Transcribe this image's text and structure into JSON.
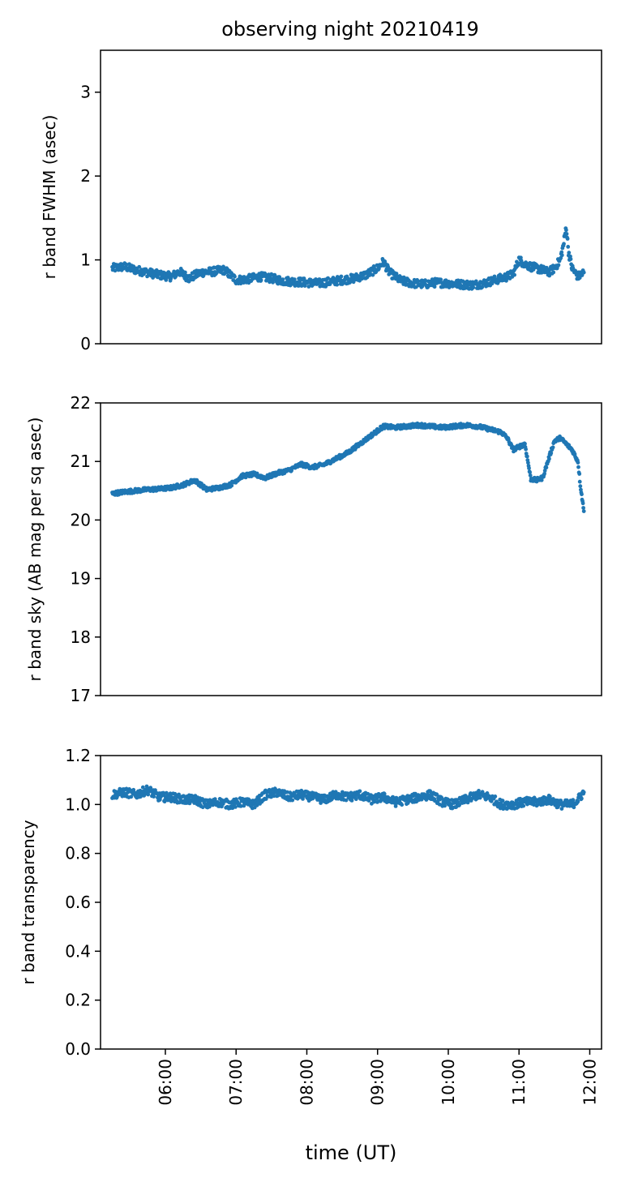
{
  "figure": {
    "title": "observing night 20210419",
    "xlabel": "time (UT)"
  },
  "chart_data": [
    {
      "type": "scatter",
      "panel": "fwhm",
      "ylabel": "r band FWHM (asec)",
      "ylim": [
        0,
        3.5
      ],
      "yticks": [
        "0",
        "1",
        "2",
        "3"
      ],
      "ytick_values": [
        0,
        1,
        2,
        3
      ],
      "xlim": [
        "05:05",
        "12:10"
      ],
      "show_xticks": false,
      "color": "#1f77b4",
      "series": [
        {
          "x": [
            "05:15",
            "05:25",
            "05:35",
            "05:45",
            "05:55",
            "06:05",
            "06:12",
            "06:20",
            "06:30",
            "06:40",
            "06:50",
            "07:00",
            "07:10",
            "07:20",
            "07:30",
            "07:40",
            "07:50",
            "08:00",
            "08:10",
            "08:20",
            "08:30",
            "08:40",
            "08:50",
            "09:00",
            "09:05",
            "09:10",
            "09:20",
            "09:30",
            "09:40",
            "09:50",
            "10:00",
            "10:10",
            "10:20",
            "10:30",
            "10:40",
            "10:50",
            "10:55",
            "11:00",
            "11:05",
            "11:10",
            "11:15",
            "11:20",
            "11:25",
            "11:30",
            "11:35",
            "11:38",
            "11:40",
            "11:42",
            "11:45",
            "11:50",
            "11:55"
          ],
          "y": [
            0.9,
            0.92,
            0.88,
            0.85,
            0.82,
            0.8,
            0.86,
            0.78,
            0.85,
            0.86,
            0.88,
            0.76,
            0.77,
            0.8,
            0.78,
            0.75,
            0.74,
            0.73,
            0.72,
            0.74,
            0.76,
            0.78,
            0.82,
            0.9,
            0.98,
            0.85,
            0.75,
            0.72,
            0.71,
            0.73,
            0.72,
            0.71,
            0.7,
            0.72,
            0.76,
            0.8,
            0.83,
            1.0,
            0.95,
            0.92,
            0.9,
            0.88,
            0.85,
            0.9,
            1.0,
            1.2,
            1.4,
            1.1,
            0.9,
            0.8,
            0.85
          ]
        }
      ]
    },
    {
      "type": "scatter",
      "panel": "sky",
      "ylabel": "r band sky (AB mag per sq asec)",
      "ylim": [
        17,
        22
      ],
      "yticks": [
        "17",
        "18",
        "19",
        "20",
        "21",
        "22"
      ],
      "ytick_values": [
        17,
        18,
        19,
        20,
        21,
        22
      ],
      "xlim": [
        "05:05",
        "12:10"
      ],
      "show_xticks": false,
      "color": "#1f77b4",
      "series": [
        {
          "x": [
            "05:15",
            "05:25",
            "05:35",
            "05:45",
            "05:55",
            "06:05",
            "06:15",
            "06:25",
            "06:35",
            "06:45",
            "06:55",
            "07:05",
            "07:15",
            "07:25",
            "07:35",
            "07:45",
            "07:55",
            "08:05",
            "08:15",
            "08:25",
            "08:35",
            "08:45",
            "08:55",
            "09:05",
            "09:15",
            "09:25",
            "09:35",
            "09:45",
            "09:55",
            "10:05",
            "10:15",
            "10:25",
            "10:35",
            "10:45",
            "10:50",
            "10:55",
            "11:00",
            "11:05",
            "11:10",
            "11:15",
            "11:20",
            "11:30",
            "11:35",
            "11:40",
            "11:45",
            "11:50",
            "11:52",
            "11:55"
          ],
          "y": [
            20.45,
            20.48,
            20.5,
            20.52,
            20.53,
            20.55,
            20.6,
            20.68,
            20.52,
            20.55,
            20.6,
            20.75,
            20.78,
            20.72,
            20.8,
            20.85,
            20.95,
            20.9,
            20.95,
            21.05,
            21.15,
            21.3,
            21.45,
            21.6,
            21.58,
            21.6,
            21.62,
            21.6,
            21.58,
            21.6,
            21.62,
            21.6,
            21.55,
            21.5,
            21.4,
            21.2,
            21.25,
            21.3,
            20.7,
            20.68,
            20.72,
            21.35,
            21.4,
            21.3,
            21.2,
            21.0,
            20.6,
            20.15
          ]
        }
      ]
    },
    {
      "type": "scatter",
      "panel": "transparency",
      "ylabel": "r band transparency",
      "ylim": [
        0.0,
        1.2
      ],
      "yticks": [
        "0.0",
        "0.2",
        "0.4",
        "0.6",
        "0.8",
        "1.0",
        "1.2"
      ],
      "ytick_values": [
        0.0,
        0.2,
        0.4,
        0.6,
        0.8,
        1.0,
        1.2
      ],
      "xlim": [
        "05:05",
        "12:10"
      ],
      "show_xticks": true,
      "xticks": [
        "06:00",
        "07:00",
        "08:00",
        "09:00",
        "10:00",
        "11:00",
        "12:00"
      ],
      "color": "#1f77b4",
      "series": [
        {
          "x": [
            "05:15",
            "05:25",
            "05:35",
            "05:45",
            "05:55",
            "06:05",
            "06:15",
            "06:25",
            "06:35",
            "06:45",
            "06:55",
            "07:05",
            "07:15",
            "07:25",
            "07:35",
            "07:45",
            "07:55",
            "08:05",
            "08:15",
            "08:25",
            "08:35",
            "08:45",
            "08:55",
            "09:05",
            "09:15",
            "09:25",
            "09:35",
            "09:45",
            "09:55",
            "10:05",
            "10:15",
            "10:25",
            "10:35",
            "10:45",
            "10:55",
            "11:05",
            "11:15",
            "11:25",
            "11:35",
            "11:45",
            "11:50",
            "11:55"
          ],
          "y": [
            1.04,
            1.05,
            1.04,
            1.06,
            1.03,
            1.03,
            1.02,
            1.02,
            1.0,
            1.01,
            1.0,
            1.01,
            1.0,
            1.04,
            1.05,
            1.03,
            1.04,
            1.03,
            1.02,
            1.04,
            1.03,
            1.04,
            1.02,
            1.03,
            1.01,
            1.02,
            1.03,
            1.04,
            1.01,
            1.0,
            1.02,
            1.04,
            1.03,
            1.0,
            1.0,
            1.01,
            1.01,
            1.02,
            1.0,
            1.0,
            1.02,
            1.05
          ]
        }
      ]
    }
  ]
}
